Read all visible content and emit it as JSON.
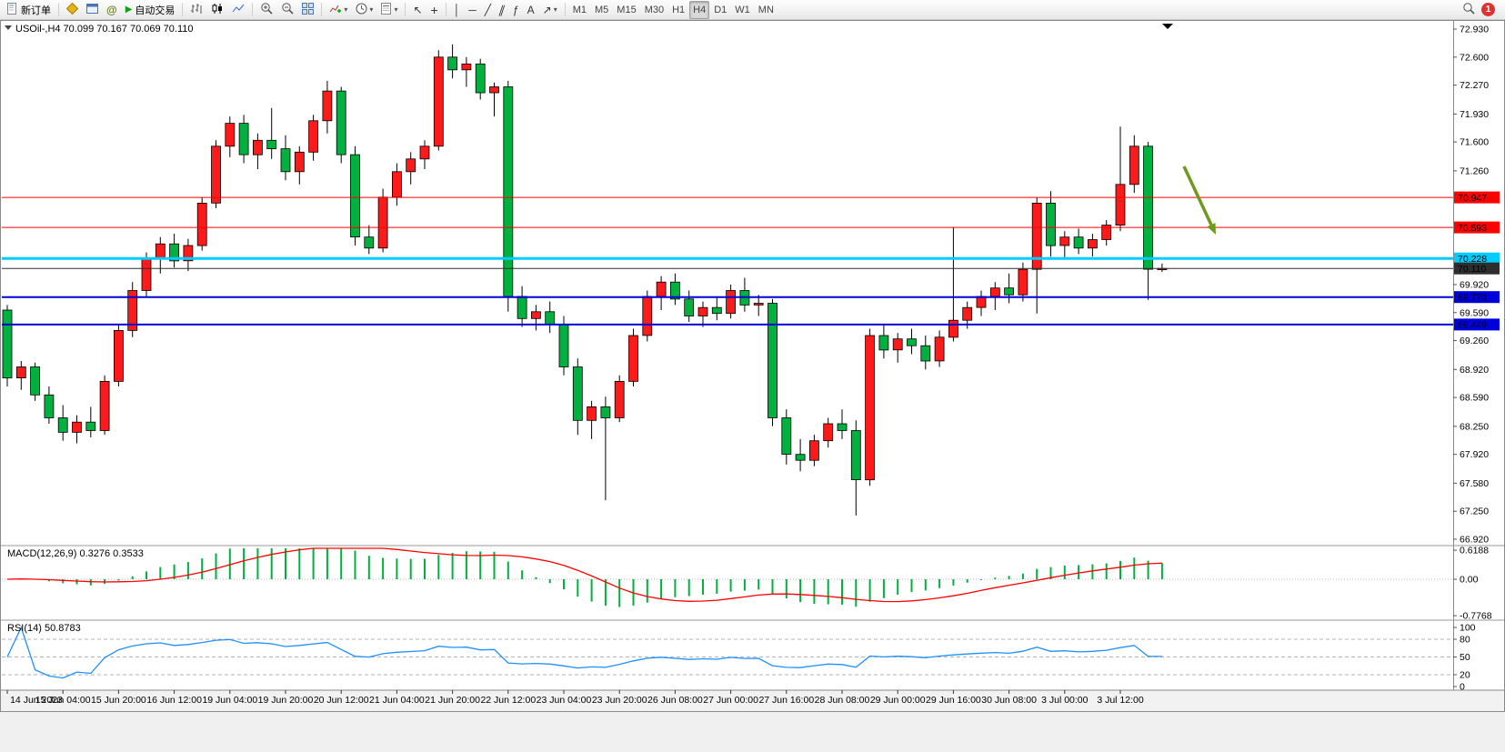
{
  "toolbar": {
    "new_order": "新订单",
    "autotrading": "自动交易",
    "timeframes": [
      "M1",
      "M5",
      "M15",
      "M30",
      "H1",
      "H4",
      "D1",
      "W1",
      "MN"
    ],
    "active_timeframe": "H4",
    "notification_count": "1"
  },
  "glyphs": {
    "collapse_triangle": "▼",
    "caret": "▾",
    "crosshair": "+",
    "cursor": "↖",
    "vertical_line": "│",
    "horizontal_line": "─",
    "trendline": "╱",
    "channel": "∥",
    "fibonacci": "ƒ",
    "text_tool": "A",
    "arrow_tool": "↗",
    "play": "▶",
    "at_community": "@"
  },
  "chart": {
    "header": "USOil-,H4 70.099 70.167 70.069 70.110",
    "macd_label": "MACD(12,26,9) 0.3276 0.3533",
    "rsi_label": "RSI(14) 50.8783"
  },
  "chart_data": {
    "type": "candlestick",
    "symbol": "USOil-",
    "timeframe": "H4",
    "ohlc_current": {
      "open": 70.099,
      "high": 70.167,
      "low": 70.069,
      "close": 70.11
    },
    "main": {
      "price_range": [
        66.92,
        72.93
      ],
      "bull_color": "#fb1b1b",
      "bear_color": "#00b140",
      "price_ticks": [
        "72.930",
        "72.600",
        "72.270",
        "71.930",
        "71.600",
        "71.260",
        "69.920",
        "69.590",
        "69.260",
        "68.920",
        "68.590",
        "68.250",
        "67.920",
        "67.580",
        "67.250",
        "66.920"
      ],
      "levels": [
        {
          "label": "70.947",
          "price": 70.947,
          "color": "#ff0000",
          "text_color": "#ffffff",
          "width": 1
        },
        {
          "label": "70.593",
          "price": 70.593,
          "color": "#ff0000",
          "text_color": "#ffffff",
          "width": 1
        },
        {
          "label": "70.228",
          "price": 70.228,
          "color": "#00ccff",
          "text_color": "#000000",
          "width": 3
        },
        {
          "label": "70.110",
          "price": 70.11,
          "color": "#2e2e2e",
          "text_color": "#ffffff",
          "width": 1
        },
        {
          "label": "69.773",
          "price": 69.773,
          "color": "#0000dd",
          "text_color": "#ffffff",
          "width": 2
        },
        {
          "label": "69.449",
          "price": 69.449,
          "color": "#0000dd",
          "text_color": "#ffffff",
          "width": 2
        }
      ],
      "annotation_arrow": {
        "color": "#6f9a1e",
        "direction": "down-right"
      },
      "candles": [
        [
          69.62,
          69.68,
          68.72,
          68.82
        ],
        [
          68.82,
          69.02,
          68.68,
          68.95
        ],
        [
          68.95,
          69.0,
          68.55,
          68.62
        ],
        [
          68.62,
          68.72,
          68.28,
          68.35
        ],
        [
          68.35,
          68.5,
          68.08,
          68.18
        ],
        [
          68.18,
          68.38,
          68.05,
          68.3
        ],
        [
          68.3,
          68.48,
          68.12,
          68.2
        ],
        [
          68.2,
          68.85,
          68.15,
          68.78
        ],
        [
          68.78,
          69.45,
          68.72,
          69.38
        ],
        [
          69.38,
          69.95,
          69.3,
          69.85
        ],
        [
          69.85,
          70.3,
          69.78,
          70.22
        ],
        [
          70.22,
          70.48,
          70.05,
          70.4
        ],
        [
          70.4,
          70.52,
          70.12,
          70.2
        ],
        [
          70.2,
          70.46,
          70.08,
          70.38
        ],
        [
          70.38,
          70.95,
          70.32,
          70.88
        ],
        [
          70.88,
          71.62,
          70.82,
          71.55
        ],
        [
          71.55,
          71.9,
          71.42,
          71.82
        ],
        [
          71.82,
          71.92,
          71.35,
          71.45
        ],
        [
          71.45,
          71.7,
          71.28,
          71.62
        ],
        [
          71.62,
          72.0,
          71.4,
          71.52
        ],
        [
          71.52,
          71.68,
          71.15,
          71.25
        ],
        [
          71.25,
          71.55,
          71.1,
          71.48
        ],
        [
          71.48,
          71.92,
          71.38,
          71.85
        ],
        [
          71.85,
          72.32,
          71.7,
          72.2
        ],
        [
          72.2,
          72.25,
          71.35,
          71.45
        ],
        [
          71.45,
          71.55,
          70.38,
          70.48
        ],
        [
          70.48,
          70.62,
          70.28,
          70.35
        ],
        [
          70.35,
          71.05,
          70.3,
          70.95
        ],
        [
          70.95,
          71.35,
          70.85,
          71.25
        ],
        [
          71.25,
          71.48,
          71.1,
          71.4
        ],
        [
          71.4,
          71.62,
          71.28,
          71.55
        ],
        [
          71.55,
          72.68,
          71.5,
          72.6
        ],
        [
          72.6,
          72.75,
          72.35,
          72.45
        ],
        [
          72.45,
          72.6,
          72.25,
          72.52
        ],
        [
          72.52,
          72.58,
          72.1,
          72.18
        ],
        [
          72.18,
          72.3,
          71.9,
          72.25
        ],
        [
          72.25,
          72.32,
          69.6,
          69.78
        ],
        [
          69.78,
          69.9,
          69.42,
          69.52
        ],
        [
          69.52,
          69.68,
          69.38,
          69.6
        ],
        [
          69.6,
          69.72,
          69.35,
          69.45
        ],
        [
          69.45,
          69.55,
          68.85,
          68.95
        ],
        [
          68.95,
          69.05,
          68.15,
          68.32
        ],
        [
          68.32,
          68.55,
          68.1,
          68.48
        ],
        [
          68.48,
          68.6,
          67.38,
          68.35
        ],
        [
          68.35,
          68.85,
          68.3,
          68.78
        ],
        [
          68.78,
          69.4,
          68.72,
          69.32
        ],
        [
          69.32,
          69.85,
          69.25,
          69.78
        ],
        [
          69.78,
          70.02,
          69.62,
          69.95
        ],
        [
          69.95,
          70.05,
          69.68,
          69.75
        ],
        [
          69.75,
          69.85,
          69.48,
          69.55
        ],
        [
          69.55,
          69.72,
          69.42,
          69.65
        ],
        [
          69.65,
          69.78,
          69.5,
          69.58
        ],
        [
          69.58,
          69.92,
          69.52,
          69.85
        ],
        [
          69.85,
          70.0,
          69.6,
          69.68
        ],
        [
          69.68,
          69.8,
          69.55,
          69.7
        ],
        [
          69.7,
          69.75,
          68.25,
          68.35
        ],
        [
          68.35,
          68.45,
          67.8,
          67.92
        ],
        [
          67.92,
          68.1,
          67.72,
          67.85
        ],
        [
          67.85,
          68.15,
          67.78,
          68.08
        ],
        [
          68.08,
          68.35,
          68.0,
          68.28
        ],
        [
          68.28,
          68.45,
          68.1,
          68.2
        ],
        [
          68.2,
          68.32,
          67.2,
          67.62
        ],
        [
          67.62,
          69.4,
          67.55,
          69.32
        ],
        [
          69.32,
          69.45,
          69.05,
          69.15
        ],
        [
          69.15,
          69.35,
          69.0,
          69.28
        ],
        [
          69.28,
          69.4,
          69.1,
          69.2
        ],
        [
          69.2,
          69.32,
          68.92,
          69.02
        ],
        [
          69.02,
          69.38,
          68.95,
          69.3
        ],
        [
          69.3,
          70.6,
          69.25,
          69.5
        ],
        [
          69.5,
          69.72,
          69.4,
          69.65
        ],
        [
          69.65,
          69.85,
          69.55,
          69.78
        ],
        [
          69.78,
          69.95,
          69.62,
          69.88
        ],
        [
          69.88,
          70.05,
          69.7,
          69.8
        ],
        [
          69.8,
          70.18,
          69.72,
          70.1
        ],
        [
          70.1,
          70.95,
          69.58,
          70.88
        ],
        [
          70.88,
          71.02,
          70.25,
          70.38
        ],
        [
          70.38,
          70.55,
          70.22,
          70.48
        ],
        [
          70.48,
          70.58,
          70.28,
          70.35
        ],
        [
          70.35,
          70.52,
          70.25,
          70.45
        ],
        [
          70.45,
          70.68,
          70.38,
          70.62
        ],
        [
          70.62,
          71.78,
          70.55,
          71.1
        ],
        [
          71.1,
          71.68,
          71.0,
          71.55
        ],
        [
          71.55,
          71.6,
          69.74,
          70.1
        ],
        [
          70.099,
          70.167,
          70.069,
          70.11
        ]
      ]
    },
    "macd": {
      "type": "macd",
      "params": "12,26,9",
      "value_main": "0.3276",
      "value_signal": "0.3533",
      "scale_labels": [
        {
          "text": "0.6188",
          "value": 0.6188
        },
        {
          "text": "0.00",
          "value": 0
        },
        {
          "text": "-0.7768",
          "value": -0.7768
        }
      ],
      "histogram_color": "#00b140",
      "signal_color": "#ff0000"
    },
    "rsi": {
      "type": "line",
      "params": "14",
      "value": "50.8783",
      "levels": [
        80,
        50,
        20
      ],
      "scale_labels": [
        {
          "text": "100",
          "value": 100
        },
        {
          "text": "80",
          "value": 80
        },
        {
          "text": "50",
          "value": 50
        },
        {
          "text": "20",
          "value": 20
        },
        {
          "text": "0",
          "value": 0
        }
      ],
      "line_color": "#1e90ff"
    },
    "time_labels": [
      "14 Jun 2023",
      "15 Jun 04:00",
      "15 Jun 20:00",
      "16 Jun 12:00",
      "19 Jun 04:00",
      "19 Jun 20:00",
      "20 Jun 12:00",
      "21 Jun 04:00",
      "21 Jun 20:00",
      "22 Jun 12:00",
      "23 Jun 04:00",
      "23 Jun 20:00",
      "26 Jun 08:00",
      "27 Jun 00:00",
      "27 Jun 16:00",
      "28 Jun 08:00",
      "29 Jun 00:00",
      "29 Jun 16:00",
      "30 Jun 08:00",
      "3 Jul 00:00",
      "3 Jul 12:00"
    ]
  }
}
